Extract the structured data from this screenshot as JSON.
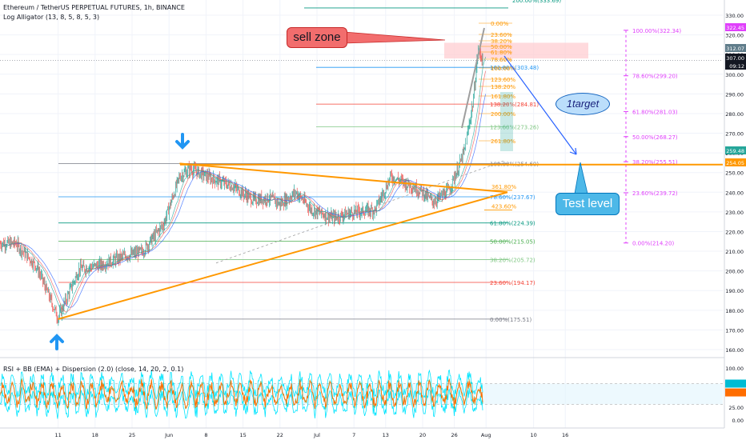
{
  "header": {
    "title": "Ethereum / TetherUS PERPETUAL FUTURES, 1h, BINANCE",
    "indicator": "Log Alligator (13, 8, 5, 8, 5, 3)",
    "rsi_legend": "RSI + BB (EMA) + Dispersion (2.0) (close, 14, 20, 2, 0.1)"
  },
  "annotations": {
    "sell_zone": "sell zone",
    "target": "1target",
    "test_level": "Test level"
  },
  "colors": {
    "up": "#26a69a",
    "down": "#ef5350",
    "orange": "#ff9800",
    "magenta": "#e040fb",
    "blue": "#2962ff",
    "rsi_line": "#ff6d00",
    "rsi_band": "#00e5ff",
    "sell_fill": "#ffcdd2",
    "callout_red": "#f26d6d",
    "callout_blue": "#4db8e8"
  },
  "price_axis": {
    "ticks": [
      "330.00",
      "320.00",
      "310.00",
      "300.00",
      "290.00",
      "280.00",
      "270.00",
      "260.00",
      "250.00",
      "240.00",
      "230.00",
      "220.00",
      "210.00",
      "200.00",
      "190.00",
      "180.00",
      "170.00",
      "160.00"
    ],
    "badges": [
      {
        "text": "322.45",
        "color": "#e040fb"
      },
      {
        "text": "312.07",
        "color": "#607d8b"
      },
      {
        "text": "307.00",
        "color": "#131722"
      },
      {
        "text": "09:12",
        "color": "#131722"
      },
      {
        "text": "259.48",
        "color": "#26a69a"
      },
      {
        "text": "254.05",
        "color": "#ff9800"
      }
    ]
  },
  "rsi_axis": {
    "ticks": [
      "100.00",
      "75.00",
      "50.00",
      "25.00",
      "0.00"
    ]
  },
  "time_axis": {
    "ticks": [
      "11",
      "18",
      "25",
      "Jun",
      "8",
      "15",
      "22",
      "Jul",
      "7",
      "13",
      "20",
      "26",
      "Aug",
      "10",
      "16"
    ]
  },
  "fib_main": [
    {
      "label": "100.00%(254.60)",
      "color": "#787b86"
    },
    {
      "label": "78.60%(237.67)",
      "color": "#2196f3"
    },
    {
      "label": "61.80%(224.39)",
      "color": "#089981"
    },
    {
      "label": "50.00%(215.05)",
      "color": "#4caf50"
    },
    {
      "label": "38.20%(205.72)",
      "color": "#81c784"
    },
    {
      "label": "23.60%(194.17)",
      "color": "#f44336"
    },
    {
      "label": "0.00%(175.51)",
      "color": "#787b86"
    },
    {
      "label": "161.80%(303.48)",
      "color": "#2196f3"
    },
    {
      "label": "138.20%(284.81)",
      "color": "#f44336"
    },
    {
      "label": "123.60%(273.26)",
      "color": "#81c784"
    }
  ],
  "fib_ext": [
    "361.80%",
    "423.60%"
  ],
  "fib_right": [
    "100.00%(322.34)",
    "78.60%(299.20)",
    "61.80%(281.03)",
    "50.00%(268.27)",
    "38.20%(255.51)",
    "23.60%(239.72)",
    "0.00%(214.20)"
  ],
  "fib_small": [
    "0.00%",
    "23.60%",
    "38.20%",
    "50.00%",
    "61.80%",
    "78.60%",
    "100.00%",
    "123.60%",
    "138.20%",
    "161.80%",
    "200.00%",
    "261.80%"
  ],
  "fib_top": "200.00%(333.69)",
  "chart_data": {
    "type": "candlestick",
    "title": "Ethereum / TetherUS PERPETUAL FUTURES, 1h, BINANCE",
    "y_range": [
      155,
      336
    ],
    "rsi_range": [
      0,
      100
    ],
    "y_axis_ticks": [
      330,
      320,
      310,
      300,
      290,
      280,
      270,
      260,
      250,
      240,
      230,
      220,
      210,
      200,
      190,
      180,
      170,
      160
    ],
    "x_axis_ticks": [
      "11",
      "18",
      "25",
      "Jun",
      "8",
      "15",
      "22",
      "Jul",
      "7",
      "13",
      "20",
      "26",
      "Aug",
      "10",
      "16"
    ],
    "price_anchors": [
      {
        "day": 0,
        "price": 214
      },
      {
        "day": 3,
        "price": 214
      },
      {
        "day": 7,
        "price": 202
      },
      {
        "day": 11,
        "price": 176
      },
      {
        "day": 15,
        "price": 201
      },
      {
        "day": 19,
        "price": 203
      },
      {
        "day": 23,
        "price": 207
      },
      {
        "day": 27,
        "price": 210
      },
      {
        "day": 31,
        "price": 224
      },
      {
        "day": 34,
        "price": 248
      },
      {
        "day": 36,
        "price": 252
      },
      {
        "day": 40,
        "price": 247
      },
      {
        "day": 44,
        "price": 243
      },
      {
        "day": 48,
        "price": 236
      },
      {
        "day": 51,
        "price": 237
      },
      {
        "day": 53,
        "price": 234
      },
      {
        "day": 56,
        "price": 240
      },
      {
        "day": 59,
        "price": 231
      },
      {
        "day": 63,
        "price": 227
      },
      {
        "day": 67,
        "price": 230
      },
      {
        "day": 71,
        "price": 231
      },
      {
        "day": 74,
        "price": 248
      },
      {
        "day": 78,
        "price": 243
      },
      {
        "day": 80,
        "price": 240
      },
      {
        "day": 82,
        "price": 235
      },
      {
        "day": 85,
        "price": 241
      },
      {
        "day": 87,
        "price": 254
      },
      {
        "day": 88,
        "price": 262
      },
      {
        "day": 89.5,
        "price": 285
      },
      {
        "day": 90.5,
        "price": 312
      },
      {
        "day": 91.5,
        "price": 307
      }
    ],
    "levels": {
      "fib_main": [
        254.6,
        237.67,
        224.39,
        215.05,
        205.72,
        194.17,
        175.51,
        303.48,
        284.81,
        273.26
      ],
      "fib_right": [
        322.34,
        299.2,
        281.03,
        268.27,
        255.51,
        239.72,
        214.2
      ],
      "fib_top": 333.69,
      "support_line": 254.05,
      "last_price": 307.0,
      "sell_zone": [
        308,
        316
      ],
      "rsi_bands": [
        70,
        30
      ]
    },
    "triangle": {
      "upper": [
        [
          34,
          254.6
        ],
        [
          90,
          240
        ]
      ],
      "lower": [
        [
          11,
          175.5
        ],
        [
          90,
          240
        ]
      ],
      "dashed": [
        [
          58,
          228
        ],
        [
          92,
          256
        ]
      ]
    }
  }
}
